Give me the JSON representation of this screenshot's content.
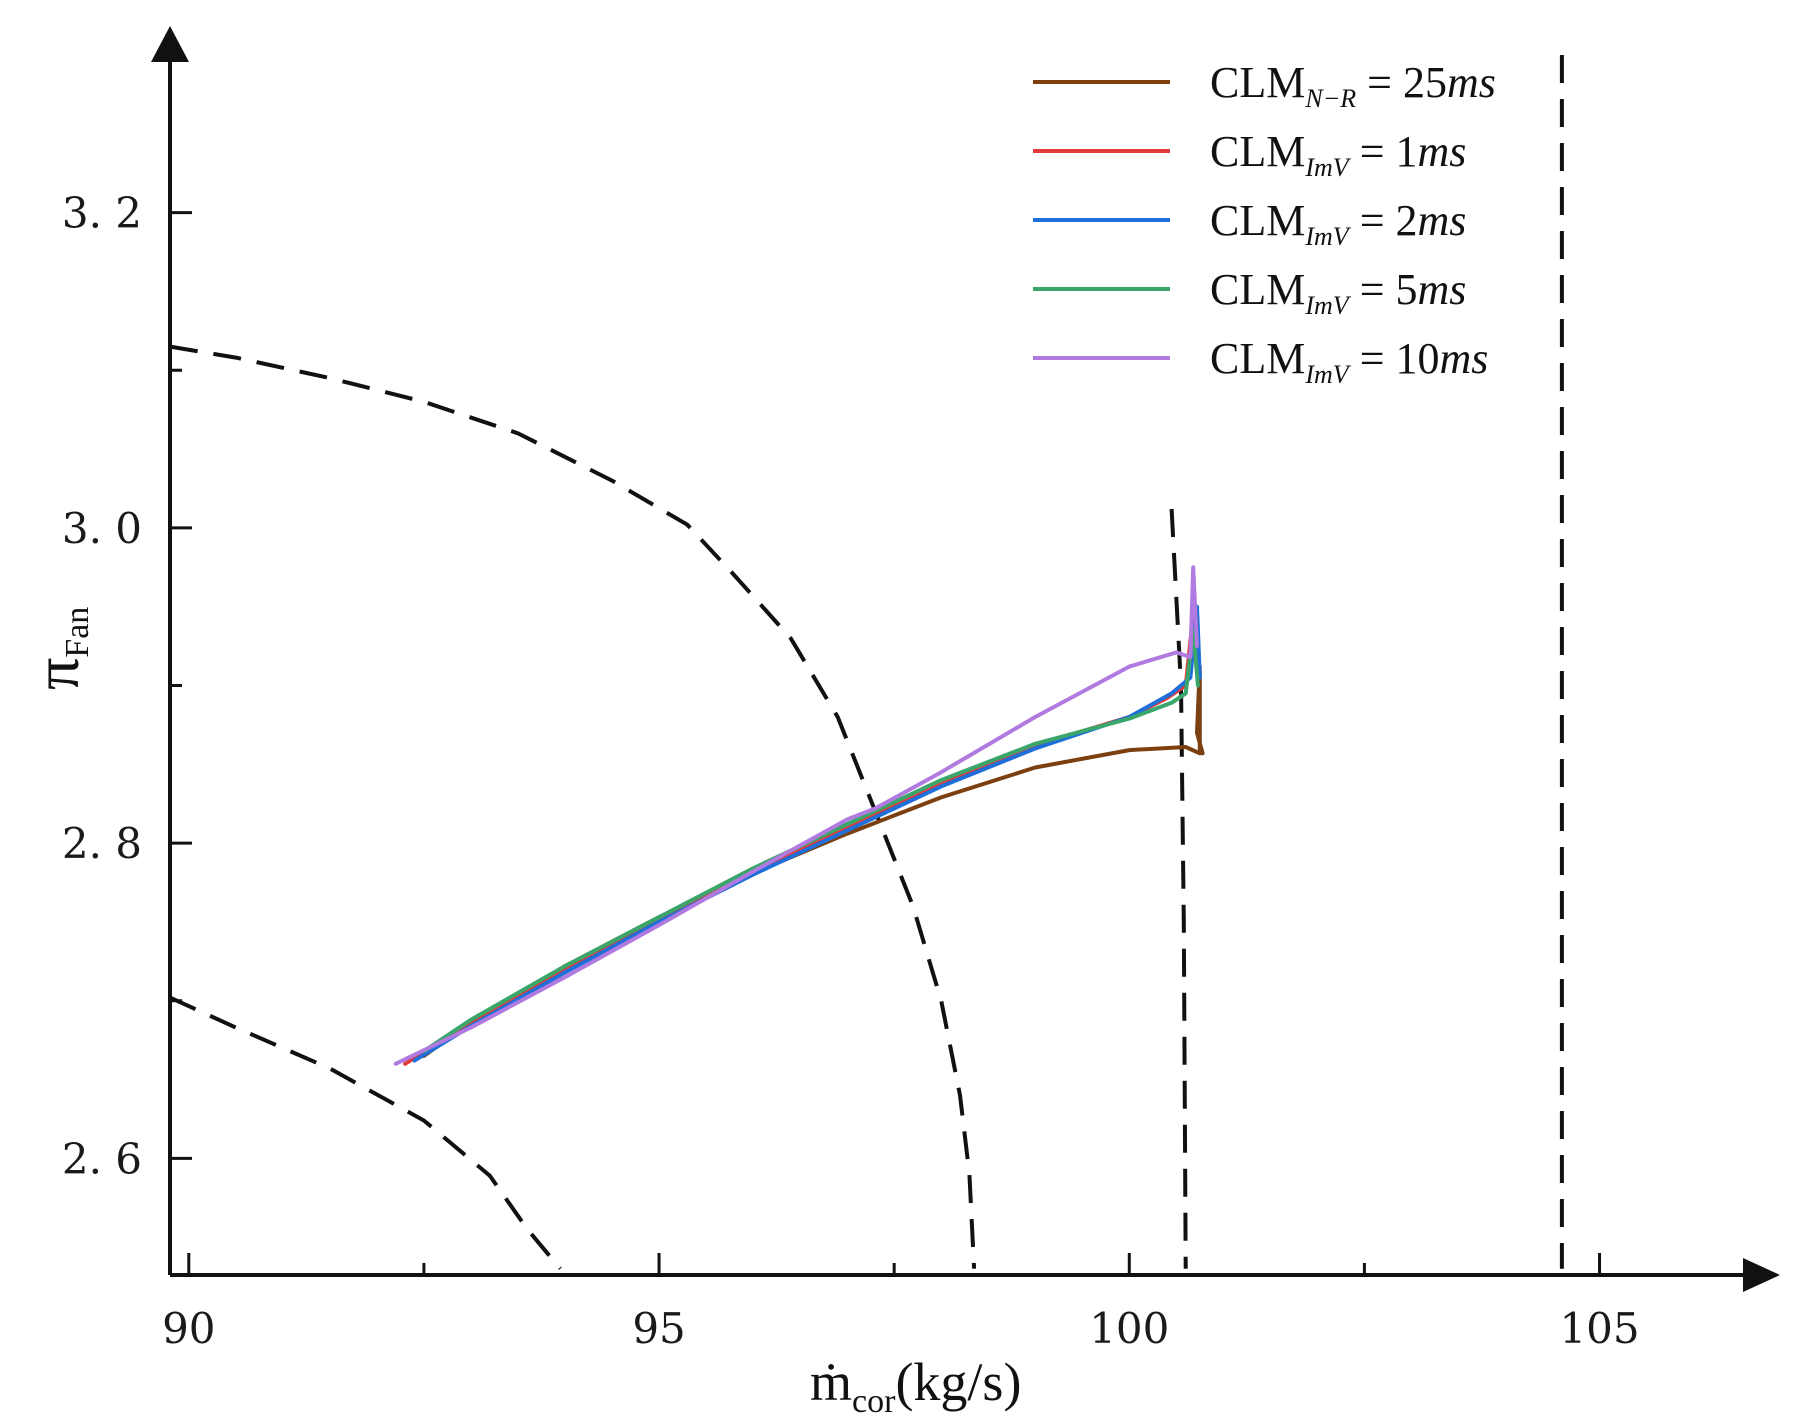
{
  "chart_data": {
    "type": "line",
    "title": "",
    "xlabel": {
      "main": "ṁ",
      "sub": "cor",
      "unit": "(kg/s)"
    },
    "ylabel": {
      "main": "π",
      "sub": "Fan"
    },
    "xlim": [
      89.8,
      106.6
    ],
    "ylim": [
      2.526,
      3.3
    ],
    "xticks": [
      90,
      95,
      100,
      105
    ],
    "yticks": [
      2.6,
      2.8,
      3.0,
      3.2
    ],
    "xtick_labels": [
      "90",
      "95",
      "100",
      "105"
    ],
    "ytick_labels": [
      "2. 6",
      "2. 8",
      "3. 0",
      "3. 2"
    ],
    "x_minor_ticks": [
      92.5,
      97.5,
      102.5
    ],
    "y_minor_ticks": [
      2.7,
      2.9,
      3.1
    ],
    "grid": false,
    "legend_position": "top-right",
    "series": [
      {
        "name": "CLM_N-R = 25ms",
        "legend": {
          "base": "CLM",
          "sub": "N−R",
          "eq": " = 25",
          "unit": "ms"
        },
        "color": "#7B3F10",
        "points": [
          [
            92.5,
            2.665
          ],
          [
            93.0,
            2.686
          ],
          [
            94.0,
            2.722
          ],
          [
            95.0,
            2.753
          ],
          [
            96.0,
            2.781
          ],
          [
            97.0,
            2.806
          ],
          [
            98.0,
            2.829
          ],
          [
            99.0,
            2.848
          ],
          [
            100.0,
            2.859
          ],
          [
            100.6,
            2.861
          ],
          [
            100.75,
            2.857
          ],
          [
            100.75,
            2.912
          ],
          [
            100.72,
            2.87
          ],
          [
            100.78,
            2.857
          ]
        ]
      },
      {
        "name": "CLM_ImV = 1ms",
        "legend": {
          "base": "CLM",
          "sub": "ImV",
          "eq": " = 1",
          "unit": "ms"
        },
        "color": "#E23B3B",
        "points": [
          [
            92.3,
            2.66
          ],
          [
            93.0,
            2.686
          ],
          [
            94.0,
            2.72
          ],
          [
            95.0,
            2.752
          ],
          [
            96.0,
            2.782
          ],
          [
            97.0,
            2.81
          ],
          [
            98.0,
            2.838
          ],
          [
            99.0,
            2.862
          ],
          [
            100.0,
            2.88
          ],
          [
            100.4,
            2.892
          ],
          [
            100.6,
            2.9
          ],
          [
            100.68,
            2.945
          ],
          [
            100.72,
            2.908
          ]
        ]
      },
      {
        "name": "CLM_ImV = 2ms",
        "legend": {
          "base": "CLM",
          "sub": "ImV",
          "eq": " = 2",
          "unit": "ms"
        },
        "color": "#1E6FD9",
        "points": [
          [
            92.4,
            2.662
          ],
          [
            93.0,
            2.684
          ],
          [
            94.0,
            2.718
          ],
          [
            95.0,
            2.75
          ],
          [
            96.0,
            2.78
          ],
          [
            97.0,
            2.808
          ],
          [
            98.0,
            2.836
          ],
          [
            99.0,
            2.86
          ],
          [
            100.0,
            2.88
          ],
          [
            100.45,
            2.895
          ],
          [
            100.65,
            2.905
          ],
          [
            100.72,
            2.95
          ],
          [
            100.75,
            2.905
          ]
        ]
      },
      {
        "name": "CLM_ImV = 5ms",
        "legend": {
          "base": "CLM",
          "sub": "ImV",
          "eq": " = 5",
          "unit": "ms"
        },
        "color": "#3AA66B",
        "points": [
          [
            92.5,
            2.668
          ],
          [
            93.0,
            2.688
          ],
          [
            94.0,
            2.722
          ],
          [
            95.0,
            2.753
          ],
          [
            96.0,
            2.784
          ],
          [
            97.0,
            2.812
          ],
          [
            98.0,
            2.84
          ],
          [
            99.0,
            2.863
          ],
          [
            100.0,
            2.879
          ],
          [
            100.45,
            2.889
          ],
          [
            100.6,
            2.895
          ],
          [
            100.68,
            2.935
          ],
          [
            100.73,
            2.9
          ]
        ]
      },
      {
        "name": "CLM_ImV = 10ms",
        "legend": {
          "base": "CLM",
          "sub": "ImV",
          "eq": " = 10",
          "unit": "ms"
        },
        "color": "#B07AE0",
        "points": [
          [
            92.2,
            2.66
          ],
          [
            93.0,
            2.683
          ],
          [
            94.0,
            2.715
          ],
          [
            95.0,
            2.748
          ],
          [
            96.0,
            2.782
          ],
          [
            97.0,
            2.815
          ],
          [
            97.3,
            2.822
          ],
          [
            98.0,
            2.845
          ],
          [
            99.0,
            2.88
          ],
          [
            100.0,
            2.912
          ],
          [
            100.5,
            2.921
          ],
          [
            100.65,
            2.918
          ],
          [
            100.68,
            2.975
          ],
          [
            100.72,
            2.925
          ]
        ]
      }
    ],
    "reference_lines": [
      {
        "name": "dashed-curve-upper",
        "style": "dashed",
        "color": "#111111",
        "points": [
          [
            89.8,
            3.115
          ],
          [
            90.5,
            3.108
          ],
          [
            91.5,
            3.095
          ],
          [
            92.5,
            3.08
          ],
          [
            93.5,
            3.06
          ],
          [
            94.5,
            3.03
          ],
          [
            95.3,
            3.002
          ],
          [
            95.8,
            2.97
          ],
          [
            96.4,
            2.93
          ],
          [
            96.9,
            2.88
          ],
          [
            97.3,
            2.82
          ],
          [
            97.7,
            2.76
          ],
          [
            98.0,
            2.7
          ],
          [
            98.2,
            2.64
          ],
          [
            98.3,
            2.59
          ],
          [
            98.35,
            2.53
          ]
        ]
      },
      {
        "name": "dashed-curve-lower",
        "style": "dashed",
        "color": "#111111",
        "points": [
          [
            89.8,
            2.702
          ],
          [
            90.5,
            2.683
          ],
          [
            91.5,
            2.657
          ],
          [
            92.5,
            2.624
          ],
          [
            93.2,
            2.589
          ],
          [
            93.6,
            2.555
          ],
          [
            93.95,
            2.53
          ]
        ]
      },
      {
        "name": "dashed-vertical-a",
        "style": "dashed",
        "color": "#111111",
        "points": [
          [
            100.45,
            3.012
          ],
          [
            100.55,
            2.9
          ],
          [
            100.58,
            2.75
          ],
          [
            100.6,
            2.53
          ]
        ]
      },
      {
        "name": "dashed-vertical-b",
        "style": "dashed",
        "color": "#111111",
        "points": [
          [
            104.6,
            3.3
          ],
          [
            104.6,
            2.53
          ]
        ]
      }
    ]
  }
}
